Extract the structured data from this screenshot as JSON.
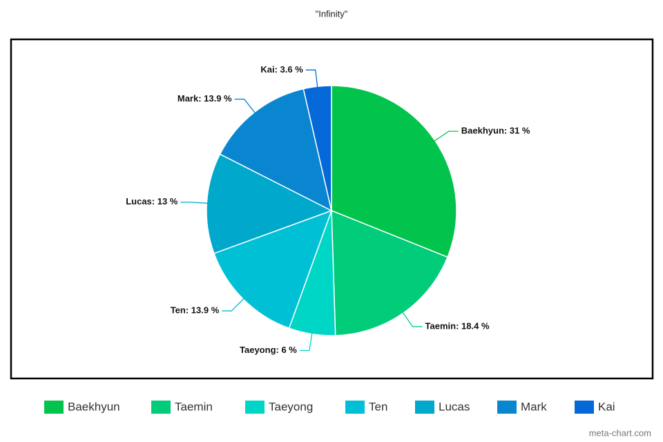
{
  "chart_data": {
    "type": "pie",
    "title": "\"Infinity\"",
    "categories": [
      "Baekhyun",
      "Taemin",
      "Taeyong",
      "Ten",
      "Lucas",
      "Mark",
      "Kai"
    ],
    "values": [
      31,
      18.4,
      6,
      13.9,
      13,
      13.9,
      3.6
    ],
    "value_labels": [
      "Baekhyun: 31 %",
      "Taemin: 18.4 %",
      "Taeyong: 6 %",
      "Ten: 13.9 %",
      "Lucas: 13 %",
      "Mark: 13.9 %",
      "Kai: 3.6 %"
    ],
    "colors": [
      "#02c44c",
      "#00cc7a",
      "#00d6c6",
      "#00c0d6",
      "#00a8cc",
      "#0a86d0",
      "#0568d8"
    ],
    "legend": "bottom",
    "watermark": "meta-chart.com"
  }
}
